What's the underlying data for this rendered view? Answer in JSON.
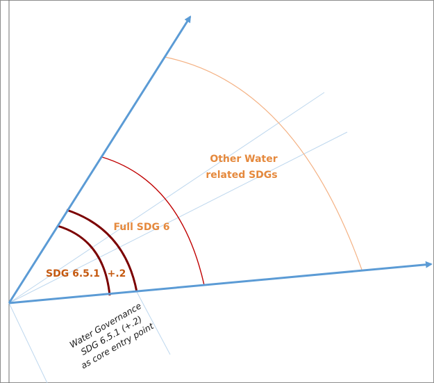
{
  "diagram": {
    "labels": {
      "other_water_line1": "Other Water",
      "other_water_line2": "related SDGs",
      "full_sdg6": "Full SDG 6",
      "sdg651": "SDG 6.5.1",
      "plus2": "+.2",
      "governance_line1": "Water Governance",
      "governance_line2": "SDG 6.5.1 (+.2)",
      "governance_line3": "as core entry point"
    },
    "colors": {
      "axis_blue": "#5B9BD5",
      "light_blue": "#BDD7EE",
      "orange_arc": "#F4B183",
      "orange_text": "#E5893D",
      "red_arc": "#C00000",
      "dark_arc": "#7B0000",
      "dark_label": "#C55A11",
      "frame": "#7F7F7F"
    }
  }
}
